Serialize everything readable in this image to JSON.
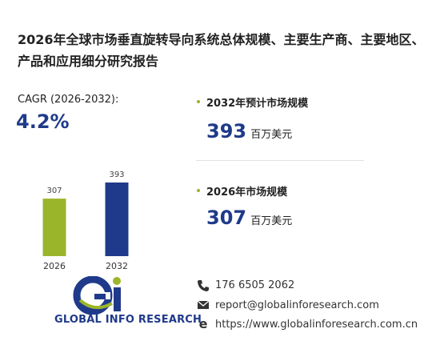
{
  "title": "2026年全球市场垂直旋转导向系统总体规模、主要生产商、主要地区、产品和应用细分研究报告",
  "cagr": {
    "label": "CAGR (2026-2032):",
    "value": "4.2%"
  },
  "chart_data": {
    "type": "bar",
    "categories": [
      "2026",
      "2032"
    ],
    "values": [
      307,
      393
    ],
    "colors": [
      "#9bb52a",
      "#1f3a8a"
    ]
  },
  "stats": [
    {
      "label": "2032年预计市场规模",
      "value": "393",
      "unit": "百万美元"
    },
    {
      "label": "2026年市场规模",
      "value": "307",
      "unit": "百万美元"
    }
  ],
  "contact": {
    "phone": "176 6505 2062",
    "email": "report@globalinforesearch.com",
    "website": "https://www.globalinforesearch.com.cn"
  },
  "logo": "GLOBAL INFO RESEARCH"
}
